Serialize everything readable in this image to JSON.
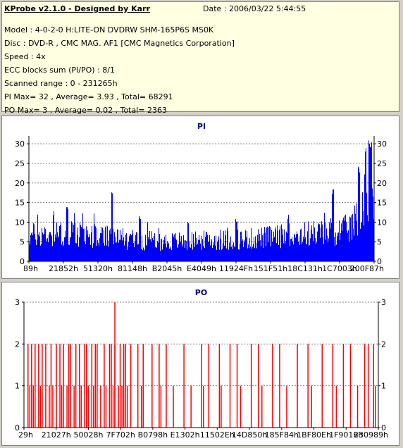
{
  "info": {
    "title": "KProbe v2.1.0 - Designed by Karr",
    "date": "Date : 2006/03/22 5:44:55",
    "lines": [
      "Model : 4-0-2-0 H:LITE-ON DVDRW SHM-165P6S MS0K",
      "Disc : DVD-R , CMC MAG. AF1 [CMC Magnetics Corporation]",
      "Speed : 4x",
      "ECC blocks sum (PI/PO) : 8/1",
      "Scanned range : 0 - 231265h",
      "PI Max= 32 , Average= 3.93 , Total= 68291",
      "PO Max= 3 , Average= 0.02 , Total= 2363"
    ]
  },
  "chart_data": [
    {
      "type": "bar",
      "title": "PI",
      "color": "#0000ff",
      "ylim": [
        0,
        32
      ],
      "yticks": [
        0,
        5,
        10,
        15,
        20,
        25,
        30
      ],
      "xtick_labels": [
        "89h",
        "21852h",
        "51320h",
        "81148h",
        "B2045h",
        "E4049h",
        "11924Fh",
        "151F51h",
        "18C131h",
        "1C7003h",
        "200F87h"
      ],
      "profile": [
        [
          0,
          8.5
        ],
        [
          0.04,
          9
        ],
        [
          0.12,
          9
        ],
        [
          0.22,
          8
        ],
        [
          0.3,
          7
        ],
        [
          0.4,
          6.5
        ],
        [
          0.55,
          7
        ],
        [
          0.65,
          7.5
        ],
        [
          0.75,
          8.5
        ],
        [
          0.85,
          9.5
        ],
        [
          0.91,
          10
        ],
        [
          0.94,
          12
        ],
        [
          0.96,
          16
        ],
        [
          0.975,
          22
        ],
        [
          0.985,
          26
        ],
        [
          0.995,
          20
        ],
        [
          1,
          16
        ]
      ],
      "peaks": [
        [
          0.07,
          13
        ],
        [
          0.11,
          14
        ],
        [
          0.24,
          18
        ],
        [
          0.32,
          12
        ],
        [
          0.46,
          10
        ],
        [
          0.6,
          11
        ],
        [
          0.75,
          12
        ],
        [
          0.88,
          19
        ],
        [
          0.955,
          25
        ],
        [
          0.975,
          30
        ],
        [
          0.985,
          32
        ],
        [
          0.99,
          31
        ]
      ],
      "grid": true
    },
    {
      "type": "bar",
      "title": "PO",
      "color": "#ff0000",
      "ylim": [
        0,
        3
      ],
      "yticks": [
        0,
        1,
        2,
        3
      ],
      "xtick_labels": [
        "29h",
        "21027h",
        "50028h",
        "7F702h",
        "B0798h",
        "E1302h",
        "11502Eh",
        "14D850h",
        "185F84h",
        "1BF80Eh",
        "1F9016h",
        "230989h"
      ],
      "bars": [
        [
          0.01,
          2
        ],
        [
          0.015,
          1
        ],
        [
          0.02,
          2
        ],
        [
          0.025,
          1
        ],
        [
          0.03,
          2
        ],
        [
          0.04,
          2
        ],
        [
          0.045,
          1
        ],
        [
          0.05,
          2
        ],
        [
          0.06,
          2
        ],
        [
          0.07,
          1
        ],
        [
          0.075,
          2
        ],
        [
          0.08,
          1
        ],
        [
          0.09,
          2
        ],
        [
          0.1,
          2
        ],
        [
          0.105,
          1
        ],
        [
          0.11,
          2
        ],
        [
          0.12,
          1
        ],
        [
          0.125,
          2
        ],
        [
          0.13,
          2
        ],
        [
          0.14,
          1
        ],
        [
          0.145,
          2
        ],
        [
          0.155,
          2
        ],
        [
          0.16,
          1
        ],
        [
          0.17,
          2
        ],
        [
          0.175,
          2
        ],
        [
          0.18,
          1
        ],
        [
          0.19,
          2
        ],
        [
          0.195,
          1
        ],
        [
          0.2,
          2
        ],
        [
          0.205,
          2
        ],
        [
          0.215,
          1
        ],
        [
          0.225,
          2
        ],
        [
          0.23,
          1
        ],
        [
          0.24,
          2
        ],
        [
          0.245,
          2
        ],
        [
          0.25,
          1
        ],
        [
          0.255,
          2
        ],
        [
          0.265,
          1
        ],
        [
          0.27,
          2
        ],
        [
          0.275,
          1
        ],
        [
          0.28,
          2
        ],
        [
          0.285,
          2
        ],
        [
          0.29,
          1
        ],
        [
          0.3,
          2
        ],
        [
          0.32,
          2
        ],
        [
          0.33,
          1
        ],
        [
          0.335,
          2
        ],
        [
          0.36,
          2
        ],
        [
          0.38,
          2
        ],
        [
          0.385,
          1
        ],
        [
          0.4,
          2
        ],
        [
          0.42,
          1
        ],
        [
          0.45,
          2
        ],
        [
          0.47,
          1
        ],
        [
          0.5,
          2
        ],
        [
          0.505,
          1
        ],
        [
          0.52,
          2
        ],
        [
          0.55,
          2
        ],
        [
          0.555,
          1
        ],
        [
          0.58,
          2
        ],
        [
          0.6,
          2
        ],
        [
          0.61,
          1
        ],
        [
          0.64,
          2
        ],
        [
          0.66,
          2
        ],
        [
          0.67,
          1
        ],
        [
          0.7,
          2
        ],
        [
          0.72,
          2
        ],
        [
          0.74,
          1
        ],
        [
          0.77,
          2
        ],
        [
          0.8,
          2
        ],
        [
          0.81,
          1
        ],
        [
          0.84,
          2
        ],
        [
          0.87,
          2
        ],
        [
          0.88,
          1
        ],
        [
          0.9,
          2
        ],
        [
          0.92,
          2
        ],
        [
          0.94,
          1
        ],
        [
          0.96,
          2
        ],
        [
          0.97,
          2
        ],
        [
          0.985,
          2
        ],
        [
          0.99,
          1
        ]
      ],
      "big_bar": [
        0.255,
        3
      ],
      "grid": true
    }
  ]
}
